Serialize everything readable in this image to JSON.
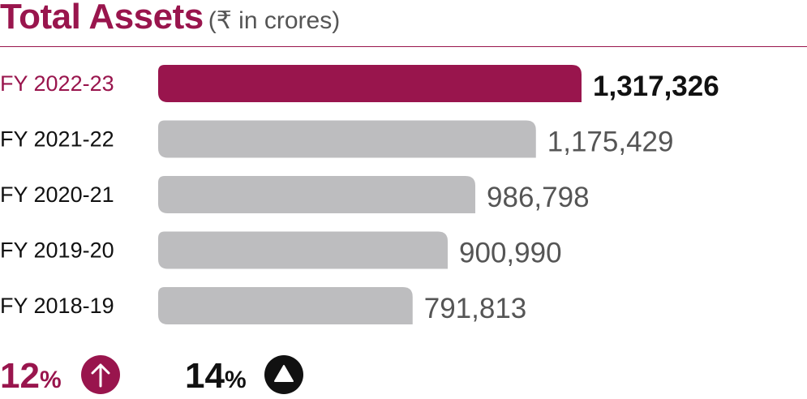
{
  "header": {
    "title": "Total Assets",
    "subtitle": "(₹ in crores)"
  },
  "colors": {
    "highlight": "#99154d",
    "bar": "#bdbdbf",
    "text": "#333333",
    "value": "#555555",
    "dark": "#111111"
  },
  "chart_data": {
    "type": "bar",
    "orientation": "horizontal",
    "title": "Total Assets",
    "unit": "(₹ in crores)",
    "categories": [
      "FY 2022-23",
      "FY 2021-22",
      "FY 2020-21",
      "FY 2019-20",
      "FY 2018-19"
    ],
    "values": [
      1317326,
      1175429,
      986798,
      900990,
      791813
    ],
    "value_labels": [
      "1,317,326",
      "1,175,429",
      "986,798",
      "900,990",
      "791,813"
    ],
    "highlight_index": 0,
    "xlim": [
      0,
      1317326
    ],
    "grid": false
  },
  "footer": {
    "growth1": {
      "value": "12",
      "unit": "%",
      "icon": "arrow-up-circle-icon"
    },
    "growth2": {
      "value": "14",
      "unit": "%",
      "icon": "triangle-up-circle-icon"
    }
  }
}
